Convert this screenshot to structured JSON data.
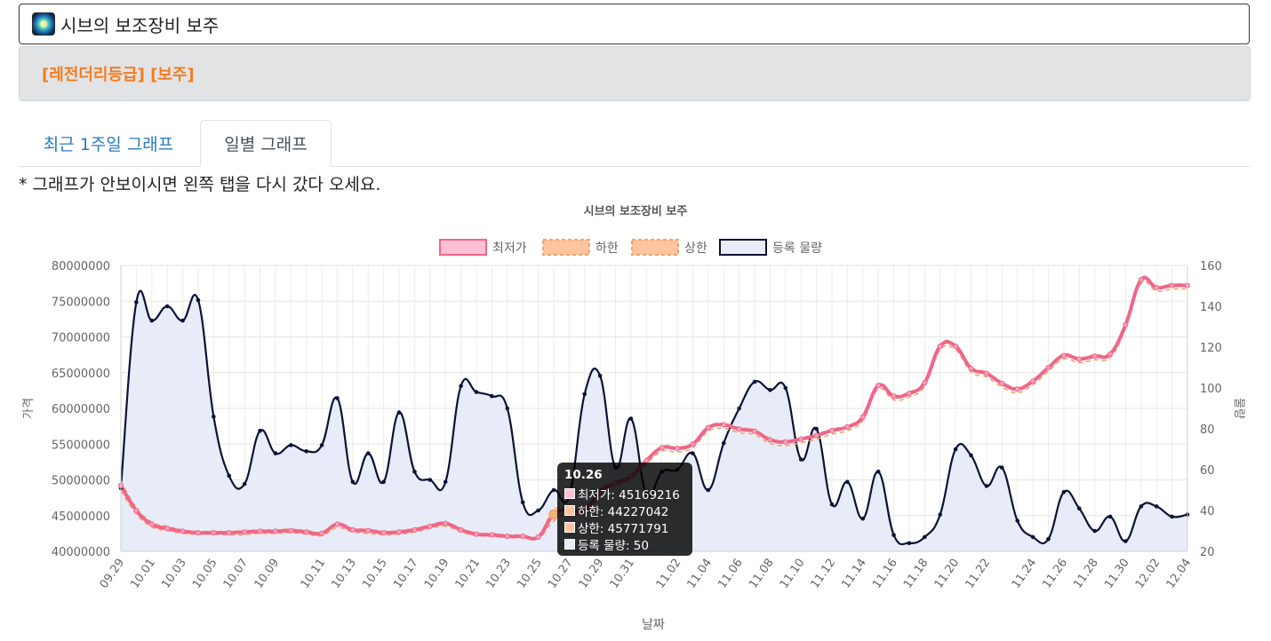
{
  "item": {
    "name": "시브의 보조장비 보주",
    "icon": "orb-gem-icon",
    "grade_line": "[레전더리등급] [보주]"
  },
  "tabs": [
    {
      "label": "최근 1주일 그래프",
      "active": false
    },
    {
      "label": "일별 그래프",
      "active": true
    }
  ],
  "notice": "* 그래프가 안보이시면 왼쪽 탭을 다시 갔다 오세요.",
  "colors": {
    "accent_orange": "#f47c20",
    "tab_link": "#2a7abf",
    "min_price": "#f0668a",
    "bounds": "#f5a06b",
    "volume_line": "#0b1236",
    "volume_fill": "#e8ecf8"
  },
  "tooltip": {
    "title": "10.26",
    "rows": [
      {
        "text": "최저가: 45169216",
        "color": "#ffc0d6"
      },
      {
        "text": "하한: 44227042",
        "color": "#ffc59e"
      },
      {
        "text": "상한: 45771791",
        "color": "#ffc59e"
      },
      {
        "text": "등록 물량: 50",
        "color": "#e8ecf8"
      }
    ]
  },
  "chart_data": {
    "type": "line",
    "title": "시브의 보조장비 보주",
    "xlabel": "날짜",
    "ylabel": "가격",
    "y2label": "물량",
    "ylim": [
      40000000,
      80000000
    ],
    "y2lim": [
      20,
      160
    ],
    "yticks": [
      "80000000",
      "75000000",
      "70000000",
      "65000000",
      "60000000",
      "55000000",
      "50000000",
      "45000000",
      "40000000"
    ],
    "y2ticks": [
      "160",
      "140",
      "120",
      "100",
      "80",
      "60",
      "40",
      "20"
    ],
    "xtick_labels": [
      "09.29",
      "10.01",
      "10.03",
      "10.05",
      "10.07",
      "10.09",
      "10.11",
      "10.13",
      "10.15",
      "10.17",
      "10.19",
      "10.21",
      "10.23",
      "10.25",
      "10.27",
      "10.29",
      "10.31",
      "11.02",
      "11.04",
      "11.06",
      "11.08",
      "11.10",
      "11.12",
      "11.14",
      "11.16",
      "11.18",
      "11.20",
      "11.22",
      "11.24",
      "11.26",
      "11.28",
      "11.30",
      "12.02",
      "12.04"
    ],
    "legend": [
      "최저가",
      "하한",
      "상한",
      "등록 물량"
    ],
    "legend_position": "top",
    "grid": true,
    "series": [
      {
        "name": "최저가",
        "axis": "left",
        "values": [
          49200000,
          45700000,
          43800000,
          43200000,
          42800000,
          42600000,
          42600000,
          42600000,
          42700000,
          42800000,
          42800000,
          42900000,
          42700000,
          42500000,
          43800000,
          43000000,
          42900000,
          42600000,
          42700000,
          43000000,
          43500000,
          43900000,
          43000000,
          42400000,
          42300000,
          42100000,
          42100000,
          42000000,
          45169216,
          45800000,
          45700000,
          48400000,
          49500000,
          50500000,
          52700000,
          54500000,
          54400000,
          55000000,
          57300000,
          57700000,
          57100000,
          56800000,
          55600000,
          55300000,
          55700000,
          56200000,
          56900000,
          57400000,
          58800000,
          63200000,
          61700000,
          62100000,
          63600000,
          68700000,
          68700000,
          65600000,
          64900000,
          63500000,
          62700000,
          63800000,
          65700000,
          67400000,
          66900000,
          67300000,
          67600000,
          71700000,
          78000000,
          76900000,
          77200000,
          77200000
        ]
      },
      {
        "name": "하한",
        "axis": "left",
        "values": [
          48500000,
          45200000,
          43400000,
          42900000,
          42500000,
          42400000,
          42400000,
          42300000,
          42300000,
          42500000,
          42500000,
          42600000,
          42400000,
          42200000,
          43300000,
          42700000,
          42500000,
          42300000,
          42400000,
          42700000,
          43200000,
          43500000,
          42700000,
          42200000,
          42100000,
          41900000,
          41900000,
          41800000,
          44227042,
          45300000,
          45300000,
          47900000,
          49000000,
          50000000,
          52200000,
          54000000,
          53900000,
          54500000,
          56800000,
          57200000,
          56600000,
          56300000,
          55100000,
          54800000,
          55200000,
          55700000,
          56400000,
          56900000,
          58300000,
          62700000,
          61200000,
          61600000,
          63100000,
          68200000,
          68200000,
          65100000,
          64400000,
          63000000,
          62200000,
          63300000,
          65200000,
          66900000,
          66400000,
          66800000,
          67100000,
          71200000,
          77500000,
          76400000,
          76700000,
          76700000
        ]
      },
      {
        "name": "상한",
        "axis": "left",
        "values": [
          49800000,
          46100000,
          44100000,
          43500000,
          43000000,
          42800000,
          42800000,
          42800000,
          42900000,
          43000000,
          43000000,
          43100000,
          42900000,
          42700000,
          44000000,
          43200000,
          43100000,
          42800000,
          42900000,
          43200000,
          43700000,
          44100000,
          43200000,
          42600000,
          42500000,
          42300000,
          42300000,
          42200000,
          45771791,
          46000000,
          45900000,
          48600000,
          49700000,
          50700000,
          52900000,
          54700000,
          54600000,
          55200000,
          57500000,
          57900000,
          57300000,
          57000000,
          55800000,
          55500000,
          55900000,
          56400000,
          57100000,
          57600000,
          59000000,
          63400000,
          61900000,
          62300000,
          63800000,
          68900000,
          68900000,
          65800000,
          65100000,
          63700000,
          62900000,
          64000000,
          65900000,
          67600000,
          67100000,
          67500000,
          67800000,
          71900000,
          78200000,
          77100000,
          77400000,
          77400000
        ]
      },
      {
        "name": "등록 물량",
        "axis": "right",
        "values": [
          51,
          142,
          133,
          140,
          133,
          143,
          86,
          57,
          53,
          79,
          68,
          72,
          69,
          72,
          95,
          54,
          68,
          54,
          88,
          59,
          55,
          54,
          101,
          98,
          96,
          90,
          44,
          40,
          50,
          47,
          97,
          106,
          61,
          85,
          48,
          59,
          60,
          68,
          50,
          73,
          90,
          103,
          99,
          100,
          65,
          80,
          43,
          54,
          36,
          59,
          28,
          24,
          27,
          38,
          70,
          67,
          52,
          61,
          35,
          27,
          26,
          49,
          41,
          30,
          37,
          25,
          42,
          42,
          37,
          38
        ]
      }
    ]
  }
}
